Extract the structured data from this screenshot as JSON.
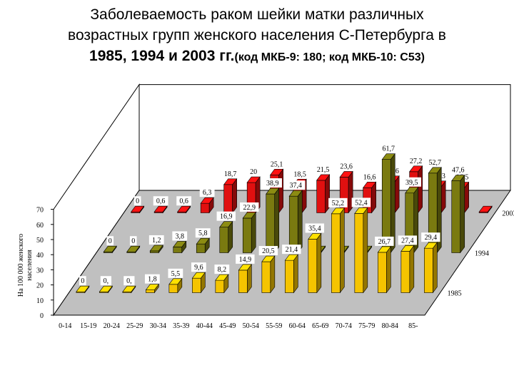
{
  "title": {
    "line1": "Заболеваемость раком шейки матки различных",
    "line2": "возрастных групп женского населения С-Петербурга в",
    "line3_main": "1985, 1994 и 2003 гг.",
    "line3_sub": "(код МКБ-9: 180; код МКБ-10: С53)"
  },
  "chart_data": {
    "type": "bar",
    "style": "3d-grouped-depth",
    "ylabel": "На 100 000 женского населения",
    "ylim": [
      0,
      70
    ],
    "yticks": [
      "0",
      "10",
      "20",
      "30",
      "40",
      "50",
      "60",
      "70"
    ],
    "categories": [
      "0-14",
      "15-19",
      "20-24",
      "25-29",
      "30-34",
      "35-39",
      "40-44",
      "45-49",
      "50-54",
      "55-59",
      "60-64",
      "65-69",
      "70-74",
      "75-79",
      "80-84",
      "85-"
    ],
    "series": [
      {
        "name": "1985",
        "color": "#f5c400",
        "values": [
          0,
          0,
          0,
          1.8,
          5.5,
          9.6,
          8.2,
          14.9,
          20.5,
          21.4,
          35.4,
          52.2,
          52.4,
          26.7,
          27.4,
          29.4
        ],
        "labels": [
          "0",
          "0,",
          "0,",
          "1,8",
          "5,5",
          "9,6",
          "8,2",
          "14,9",
          "20,5",
          "21,4",
          "35,4",
          "52,2",
          "52,4",
          "26,7",
          "27,4",
          "29,4"
        ]
      },
      {
        "name": "1994",
        "color": "#7a7a10",
        "values": [
          0,
          0,
          1.2,
          3.8,
          5.8,
          16.9,
          22.9,
          38.9,
          37.4,
          0,
          0,
          0,
          61.7,
          39.5,
          52.7,
          47.6
        ],
        "labels": [
          "0",
          "0",
          "1,2",
          "3,8",
          "5,8",
          "16,9",
          "22,9",
          "38,9",
          "37,4",
          "",
          "",
          "",
          "61,7",
          "39,5",
          "52,7",
          "47,6"
        ]
      },
      {
        "name": "2003",
        "color": "#e01010",
        "values": [
          0,
          0.6,
          0.6,
          6.3,
          18.7,
          20,
          25.1,
          18.5,
          21.5,
          23.6,
          16.6,
          20.6,
          27.2,
          17.3,
          16.5,
          0
        ],
        "labels": [
          "0",
          "0,6",
          "0,6",
          "6,3",
          "18,7",
          "20",
          "25,1",
          "18,5",
          "21,5",
          "23,6",
          "16,6",
          "20,6",
          "27,2",
          "17,3",
          "16,5",
          ""
        ]
      }
    ],
    "legend_placement": "right-depth",
    "legend_labels": [
      "1985",
      "1994",
      "2003"
    ],
    "grid": false
  }
}
